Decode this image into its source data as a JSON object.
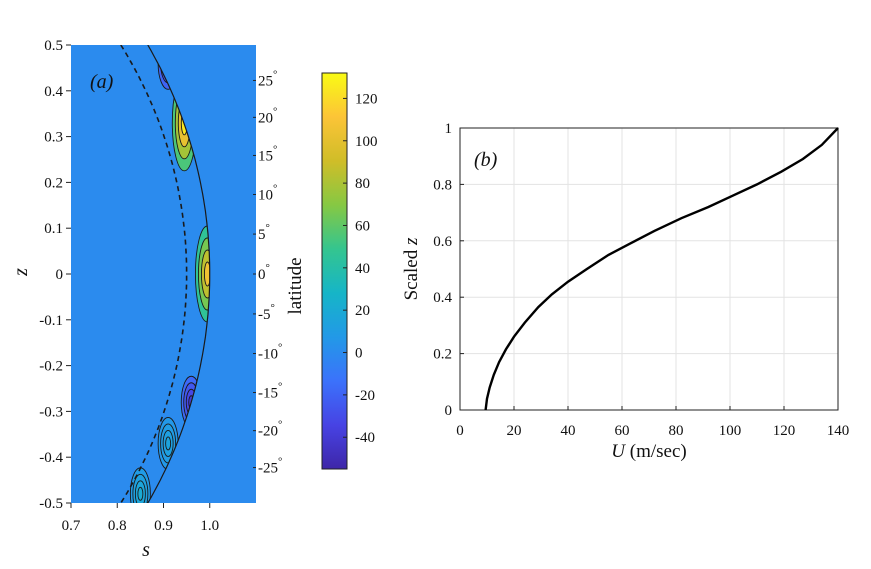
{
  "colors": {
    "background": "#3a7ff7",
    "contour_line": "#1a1a1a",
    "curve": "#000000",
    "grid": "#e3e3e3",
    "colormap": [
      "#3e26a8",
      "#4743e4",
      "#3b72fb",
      "#2299e7",
      "#16b5c7",
      "#34c58f",
      "#86c843",
      "#d0bd28",
      "#fcc437",
      "#f9fb14"
    ]
  },
  "chart_data": [
    {
      "type": "heatmap",
      "panel_label": "(a)",
      "xlabel": "s",
      "ylabel": "z",
      "xlim": [
        0.7,
        1.1
      ],
      "ylim": [
        -0.5,
        0.5
      ],
      "x_ticks": [
        0.7,
        0.8,
        0.9,
        1.0
      ],
      "x_tick_labels": [
        "0.7",
        "0.8",
        "0.9",
        "1.0"
      ],
      "y_ticks": [
        0.5,
        0.4,
        0.3,
        0.2,
        0.1,
        0,
        -0.1,
        -0.2,
        -0.3,
        -0.4,
        -0.5
      ],
      "y_tick_labels": [
        "0.5",
        "0.4",
        "0.3",
        "0.2",
        "0.1",
        "0",
        "-0.1",
        "-0.2",
        "-0.3",
        "-0.4",
        "-0.5"
      ],
      "right_axis_label": "latitude",
      "latitude_ticks": [
        25,
        20,
        15,
        10,
        5,
        0,
        -5,
        -10,
        -15,
        -20,
        -25
      ],
      "latitude_tick_labels": [
        "25",
        "20",
        "15",
        "10",
        "5",
        "0",
        "-5",
        "-10",
        "-15",
        "-20",
        "-25"
      ],
      "degree_symbol": "°",
      "shell_outer_radius": 1.0,
      "tangent_cylinder_radius": 0.95,
      "colorbar": {
        "range": [
          -55,
          132
        ],
        "ticks": [
          120,
          100,
          80,
          60,
          40,
          20,
          0,
          -20,
          -40
        ],
        "tick_labels": [
          "120",
          "100",
          "80",
          "60",
          "40",
          "20",
          "0",
          "-20",
          "-40"
        ]
      },
      "features": [
        {
          "name": "equatorial-maximum",
          "s": 0.995,
          "z": 0.0,
          "value": 105
        },
        {
          "name": "mid-latitude-maximum",
          "s": 0.945,
          "z": 0.33,
          "value": 125
        },
        {
          "name": "northern-minimum",
          "s": 0.91,
          "z": 0.46,
          "value": -45
        },
        {
          "name": "southern-minimum",
          "s": 0.96,
          "z": -0.28,
          "value": -40
        },
        {
          "name": "southern-band",
          "s": 0.91,
          "z": -0.37,
          "value": 15
        },
        {
          "name": "polar-band-south",
          "s": 0.85,
          "z": -0.48,
          "value": 20
        }
      ]
    },
    {
      "type": "line",
      "panel_label": "(b)",
      "xlabel": "U (m/sec)",
      "xlabel_parts": [
        "U",
        "(m/sec)"
      ],
      "ylabel": "Scaled z",
      "ylabel_parts": [
        "Scaled",
        "z"
      ],
      "xlim": [
        0,
        140
      ],
      "ylim": [
        0,
        1
      ],
      "x_ticks": [
        0,
        20,
        40,
        60,
        80,
        100,
        120,
        140
      ],
      "x_tick_labels": [
        "0",
        "20",
        "40",
        "60",
        "80",
        "100",
        "120",
        "140"
      ],
      "y_ticks": [
        0,
        0.2,
        0.4,
        0.6,
        0.8,
        1
      ],
      "y_tick_labels": [
        "0",
        "0.2",
        "0.4",
        "0.6",
        "0.8",
        "1"
      ],
      "grid": true,
      "series": [
        {
          "name": "U profile",
          "x": [
            9.5,
            10,
            11,
            12.5,
            14.5,
            17,
            20,
            24,
            29,
            34,
            40,
            47,
            55,
            63,
            72,
            82,
            92,
            101,
            110,
            119,
            127,
            134,
            140
          ],
          "y": [
            0,
            0.04,
            0.08,
            0.125,
            0.17,
            0.215,
            0.26,
            0.31,
            0.365,
            0.41,
            0.455,
            0.5,
            0.55,
            0.59,
            0.635,
            0.68,
            0.72,
            0.76,
            0.8,
            0.845,
            0.89,
            0.94,
            1.0
          ]
        }
      ]
    }
  ]
}
